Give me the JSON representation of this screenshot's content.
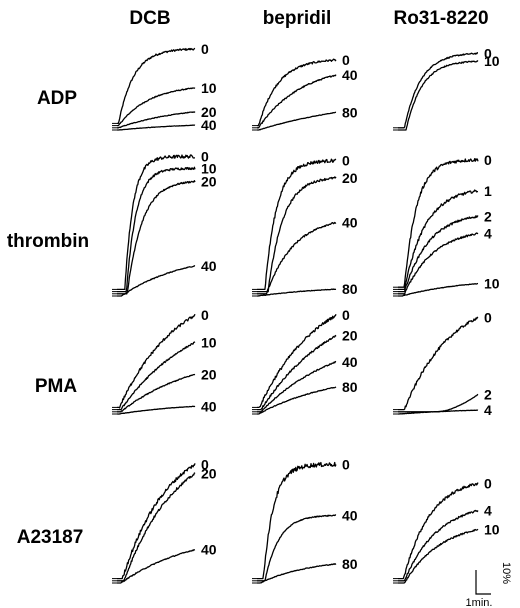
{
  "chart_data": {
    "type": "line",
    "columns": [
      "DCB",
      "bepridil",
      "Ro31-8220"
    ],
    "rows": [
      "ADP",
      "thrombin",
      "PMA",
      "A23187"
    ],
    "scale_bar": {
      "y_label": "10%",
      "x_label": "1min."
    },
    "panels": [
      {
        "row": "ADP",
        "column": "DCB",
        "series": [
          {
            "label": "0",
            "final": 0.93,
            "rate": 5.0,
            "delay": 0.02,
            "noise": 0.012
          },
          {
            "label": "10",
            "final": 0.47,
            "rate": 2.5,
            "delay": 0.02,
            "noise": 0.006
          },
          {
            "label": "20",
            "final": 0.2,
            "rate": 1.2,
            "delay": 0.02,
            "noise": 0.004
          },
          {
            "label": "40",
            "final": 0.06,
            "rate": 1.0,
            "delay": 0.02,
            "noise": 0.002
          }
        ]
      },
      {
        "row": "ADP",
        "column": "bepridil",
        "series": [
          {
            "label": "0",
            "final": 0.82,
            "rate": 4.0,
            "delay": 0.02,
            "noise": 0.012
          },
          {
            "label": "40",
            "final": 0.66,
            "rate": 1.8,
            "delay": 0.02,
            "noise": 0.008
          },
          {
            "label": "80",
            "final": 0.22,
            "rate": 0.7,
            "delay": 0.02,
            "noise": 0.003
          }
        ]
      },
      {
        "row": "ADP",
        "column": "Ro31-8220",
        "series": [
          {
            "label": "0",
            "final": 0.93,
            "rate": 4.5,
            "delay": 0.08,
            "noise": 0.008
          },
          {
            "label": "10",
            "final": 0.86,
            "rate": 4.5,
            "delay": 0.1,
            "noise": 0.008
          }
        ]
      },
      {
        "row": "thrombin",
        "column": "DCB",
        "series": [
          {
            "label": "0",
            "final": 0.97,
            "rate": 8.5,
            "delay": 0.1,
            "noise": 0.012
          },
          {
            "label": "10",
            "final": 0.9,
            "rate": 7.0,
            "delay": 0.12,
            "noise": 0.008
          },
          {
            "label": "20",
            "final": 0.82,
            "rate": 4.5,
            "delay": 0.13,
            "noise": 0.006
          },
          {
            "label": "40",
            "final": 0.22,
            "rate": 1.2,
            "delay": 0.06,
            "noise": 0.003
          }
        ]
      },
      {
        "row": "thrombin",
        "column": "bepridil",
        "series": [
          {
            "label": "0",
            "final": 0.94,
            "rate": 6.0,
            "delay": 0.1,
            "noise": 0.012
          },
          {
            "label": "20",
            "final": 0.83,
            "rate": 4.5,
            "delay": 0.14,
            "noise": 0.008
          },
          {
            "label": "40",
            "final": 0.52,
            "rate": 2.5,
            "delay": 0.12,
            "noise": 0.006
          },
          {
            "label": "80",
            "final": 0.05,
            "rate": 1.0,
            "delay": 0.02,
            "noise": 0.002
          }
        ]
      },
      {
        "row": "thrombin",
        "column": "Ro31-8220",
        "series": [
          {
            "label": "0",
            "final": 0.93,
            "rate": 6.0,
            "delay": 0.08,
            "noise": 0.012
          },
          {
            "label": "1",
            "final": 0.72,
            "rate": 3.5,
            "delay": 0.08,
            "noise": 0.01
          },
          {
            "label": "2",
            "final": 0.55,
            "rate": 3.0,
            "delay": 0.08,
            "noise": 0.008
          },
          {
            "label": "4",
            "final": 0.44,
            "rate": 2.5,
            "delay": 0.08,
            "noise": 0.006
          },
          {
            "label": "10",
            "final": 0.09,
            "rate": 1.2,
            "delay": 0.05,
            "noise": 0.002
          }
        ]
      },
      {
        "row": "PMA",
        "column": "DCB",
        "series": [
          {
            "label": "0",
            "final": 0.96,
            "rate": 1.3,
            "delay": 0.03,
            "noise": 0.014,
            "kind": "linear"
          },
          {
            "label": "10",
            "final": 0.7,
            "rate": 1.0,
            "delay": 0.05,
            "noise": 0.008,
            "kind": "linear"
          },
          {
            "label": "20",
            "final": 0.39,
            "rate": 1.0,
            "delay": 0.05,
            "noise": 0.005,
            "kind": "linear"
          },
          {
            "label": "40",
            "final": 0.08,
            "rate": 1.0,
            "delay": 0.02,
            "noise": 0.002,
            "kind": "linear"
          }
        ]
      },
      {
        "row": "PMA",
        "column": "bepridil",
        "series": [
          {
            "label": "0",
            "final": 0.96,
            "rate": 1.3,
            "delay": 0.03,
            "noise": 0.014,
            "kind": "linear"
          },
          {
            "label": "20",
            "final": 0.77,
            "rate": 1.0,
            "delay": 0.05,
            "noise": 0.01,
            "kind": "linear"
          },
          {
            "label": "40",
            "final": 0.52,
            "rate": 1.0,
            "delay": 0.05,
            "noise": 0.006,
            "kind": "linear"
          },
          {
            "label": "80",
            "final": 0.28,
            "rate": 1.0,
            "delay": 0.02,
            "noise": 0.004,
            "kind": "linear"
          }
        ]
      },
      {
        "row": "PMA",
        "column": "Ro31-8220",
        "series": [
          {
            "label": "0",
            "final": 0.96,
            "rate": 1.6,
            "delay": 0.08,
            "noise": 0.014,
            "kind": "linear"
          },
          {
            "label": "2",
            "final": 0.18,
            "rate": 1.0,
            "delay": 0.5,
            "noise": 0.002,
            "kind": "late"
          },
          {
            "label": "4",
            "final": 0.04,
            "rate": 1.0,
            "delay": 0.02,
            "noise": 0.002,
            "kind": "linear"
          }
        ]
      },
      {
        "row": "A23187",
        "column": "DCB",
        "series": [
          {
            "label": "0",
            "final": 0.96,
            "rate": 1.6,
            "delay": 0.07,
            "noise": 0.014,
            "kind": "linear"
          },
          {
            "label": "20",
            "final": 0.9,
            "rate": 1.4,
            "delay": 0.09,
            "noise": 0.01,
            "kind": "linear"
          },
          {
            "label": "40",
            "final": 0.28,
            "rate": 1.0,
            "delay": 0.05,
            "noise": 0.004,
            "kind": "linear"
          }
        ]
      },
      {
        "row": "A23187",
        "column": "bepridil",
        "series": [
          {
            "label": "0",
            "final": 0.96,
            "rate": 7.0,
            "delay": 0.08,
            "noise": 0.018
          },
          {
            "label": "40",
            "final": 0.55,
            "rate": 5.0,
            "delay": 0.1,
            "noise": 0.004
          },
          {
            "label": "80",
            "final": 0.16,
            "rate": 1.5,
            "delay": 0.04,
            "noise": 0.003
          }
        ]
      },
      {
        "row": "A23187",
        "column": "Ro31-8220",
        "series": [
          {
            "label": "0",
            "final": 0.8,
            "rate": 2.8,
            "delay": 0.07,
            "noise": 0.012
          },
          {
            "label": "4",
            "final": 0.59,
            "rate": 2.2,
            "delay": 0.08,
            "noise": 0.008
          },
          {
            "label": "10",
            "final": 0.45,
            "rate": 2.0,
            "delay": 0.08,
            "noise": 0.006
          }
        ]
      }
    ]
  }
}
